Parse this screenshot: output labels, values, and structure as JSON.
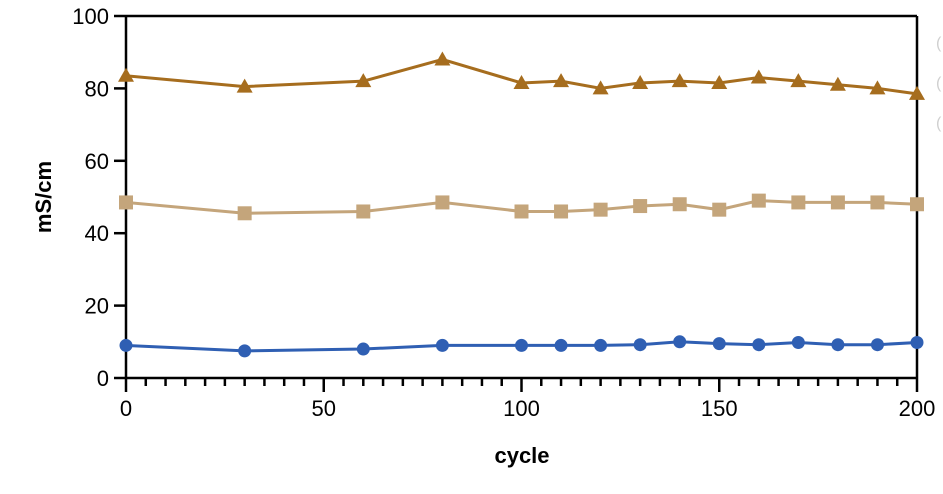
{
  "chart_data": {
    "type": "line",
    "title": "",
    "xlabel": "cycle",
    "ylabel": "mS/cm",
    "xlim": [
      0,
      200
    ],
    "ylim": [
      0,
      100
    ],
    "x_ticks": [
      0,
      50,
      100,
      150,
      200
    ],
    "y_ticks": [
      0,
      20,
      40,
      60,
      80,
      100
    ],
    "x_minor_step": 5,
    "grid": false,
    "series": [
      {
        "marker": "triangle",
        "color": "#a66d1e",
        "x": [
          0,
          30,
          60,
          80,
          100,
          110,
          120,
          130,
          140,
          150,
          160,
          170,
          180,
          190,
          200
        ],
        "values": [
          83.5,
          80.5,
          82,
          88,
          81.5,
          82,
          80,
          81.5,
          82,
          81.5,
          83,
          82,
          81,
          80,
          78.5
        ]
      },
      {
        "marker": "square",
        "color": "#c4a57b",
        "x": [
          0,
          30,
          60,
          80,
          100,
          110,
          120,
          130,
          140,
          150,
          160,
          170,
          180,
          190,
          200
        ],
        "values": [
          48.5,
          45.5,
          46,
          48.5,
          46,
          46,
          46.5,
          47.5,
          48,
          46.5,
          49,
          48.5,
          48.5,
          48.5,
          48
        ]
      },
      {
        "marker": "circle",
        "color": "#2f5fb3",
        "x": [
          0,
          30,
          60,
          80,
          100,
          110,
          120,
          130,
          140,
          150,
          160,
          170,
          180,
          190,
          200
        ],
        "values": [
          9,
          7.5,
          8,
          9,
          9,
          9,
          9,
          9.2,
          10,
          9.5,
          9.2,
          9.8,
          9.2,
          9.2,
          9.8
        ]
      }
    ],
    "edge_marks": [
      "(",
      "(",
      "("
    ]
  }
}
